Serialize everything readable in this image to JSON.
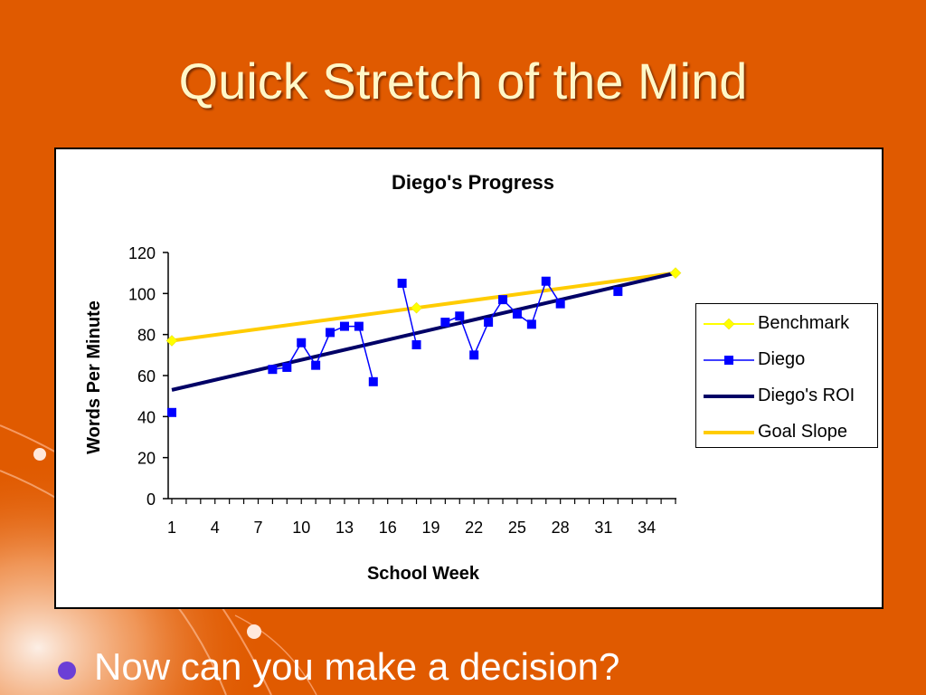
{
  "slide": {
    "title": "Quick Stretch of the Mind",
    "bullet": "Now can you make a decision?"
  },
  "colors": {
    "background": "#e05a00",
    "title": "#fff7c8",
    "bullet_dot": "#6b3fd6",
    "benchmark": "#ffff00",
    "diego": "#0000ff",
    "roi": "#000066",
    "goal": "#ffcc00"
  },
  "chart_data": {
    "type": "line",
    "title": "Diego's Progress",
    "xlabel": "School Week",
    "ylabel": "Words Per Minute",
    "xlim": [
      1,
      36
    ],
    "ylim": [
      0,
      120
    ],
    "x_ticks": [
      "1",
      "4",
      "7",
      "10",
      "13",
      "16",
      "19",
      "22",
      "25",
      "28",
      "31",
      "34"
    ],
    "y_ticks": [
      "0",
      "20",
      "40",
      "60",
      "80",
      "100",
      "120"
    ],
    "legend_position": "right",
    "series": [
      {
        "name": "Benchmark",
        "kind": "markers",
        "marker": "diamond",
        "color": "#ffff00",
        "points": [
          [
            1,
            77
          ],
          [
            18,
            93
          ],
          [
            36,
            110
          ]
        ]
      },
      {
        "name": "Diego",
        "kind": "line-markers",
        "marker": "square",
        "color": "#0000ff",
        "segments": [
          [
            [
              1,
              42
            ]
          ],
          [
            [
              8,
              63
            ],
            [
              9,
              64
            ],
            [
              10,
              76
            ],
            [
              11,
              65
            ],
            [
              12,
              81
            ],
            [
              13,
              84
            ],
            [
              14,
              84
            ],
            [
              15,
              57
            ]
          ],
          [
            [
              17,
              105
            ],
            [
              18,
              75
            ]
          ],
          [
            [
              20,
              86
            ],
            [
              21,
              89
            ],
            [
              22,
              70
            ],
            [
              23,
              86
            ],
            [
              24,
              97
            ],
            [
              25,
              90
            ],
            [
              26,
              85
            ],
            [
              27,
              106
            ],
            [
              28,
              95
            ]
          ],
          [
            [
              32,
              101
            ]
          ]
        ]
      },
      {
        "name": "Diego's ROI",
        "kind": "line",
        "color": "#000066",
        "points": [
          [
            1,
            53
          ],
          [
            36,
            110
          ]
        ]
      },
      {
        "name": "Goal Slope",
        "kind": "line",
        "color": "#ffcc00",
        "points": [
          [
            1,
            77
          ],
          [
            18,
            93
          ],
          [
            36,
            110
          ]
        ]
      }
    ]
  }
}
